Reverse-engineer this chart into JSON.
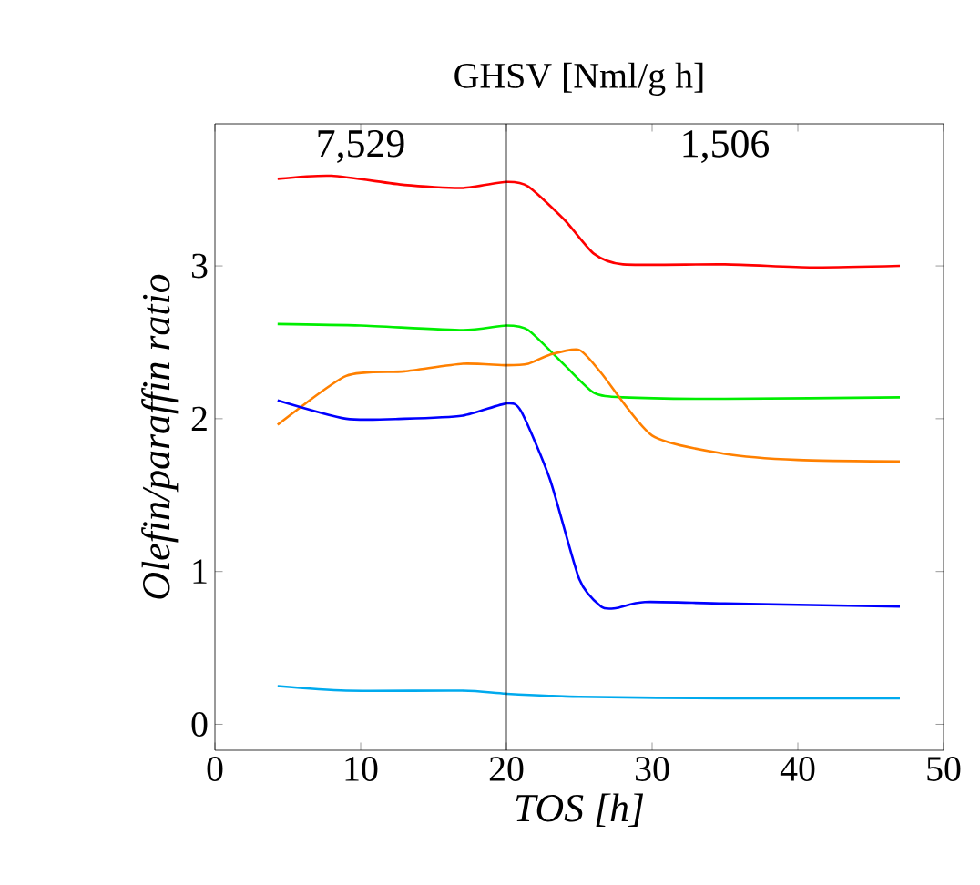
{
  "chart_data": {
    "type": "line",
    "title": "GHSV [Nml/g h]",
    "xlabel": "TOS [h]",
    "ylabel": "Olefin/paraffin ratio",
    "xlim": [
      0,
      50
    ],
    "xticks": [
      0,
      10,
      20,
      30,
      40,
      50
    ],
    "ylim": [
      -0.17,
      3.93
    ],
    "yticks": [
      0,
      1,
      2,
      3
    ],
    "grid": false,
    "marker": "none",
    "line_style": "solid",
    "ref_lines": [
      {
        "axis": "x",
        "value": 20,
        "color": "#000000"
      }
    ],
    "annotations": [
      "7,529",
      "1,506"
    ],
    "series": [
      {
        "color": "#ff0000",
        "x": [
          4.3,
          8,
          13,
          17,
          20,
          21.5,
          24,
          26,
          28,
          35,
          41,
          47
        ],
        "values": [
          3.57,
          3.59,
          3.53,
          3.51,
          3.55,
          3.52,
          3.3,
          3.08,
          3.01,
          3.01,
          2.99,
          3.0
        ]
      },
      {
        "color": "#00ee00",
        "x": [
          4.3,
          10,
          17,
          20,
          21.5,
          24,
          26,
          28,
          35,
          47
        ],
        "values": [
          2.62,
          2.61,
          2.58,
          2.61,
          2.58,
          2.35,
          2.17,
          2.14,
          2.13,
          2.14
        ]
      },
      {
        "color": "#ff8000",
        "x": [
          4.3,
          9,
          13,
          17,
          20,
          21.5,
          23,
          25,
          26.5,
          30,
          35,
          40,
          47
        ],
        "values": [
          1.96,
          2.28,
          2.31,
          2.36,
          2.35,
          2.36,
          2.42,
          2.45,
          2.3,
          1.89,
          1.77,
          1.73,
          1.72
        ]
      },
      {
        "color": "#0000ff",
        "x": [
          4.3,
          9,
          13,
          17,
          20,
          21,
          23,
          25,
          26.5,
          27.5,
          29.5,
          35,
          47
        ],
        "values": [
          2.12,
          2.0,
          2.0,
          2.02,
          2.1,
          2.05,
          1.6,
          0.95,
          0.77,
          0.76,
          0.8,
          0.79,
          0.77
        ]
      },
      {
        "color": "#00aaee",
        "x": [
          4.3,
          9,
          17,
          20,
          25,
          35,
          47
        ],
        "values": [
          0.25,
          0.22,
          0.22,
          0.2,
          0.18,
          0.17,
          0.17
        ]
      }
    ]
  }
}
